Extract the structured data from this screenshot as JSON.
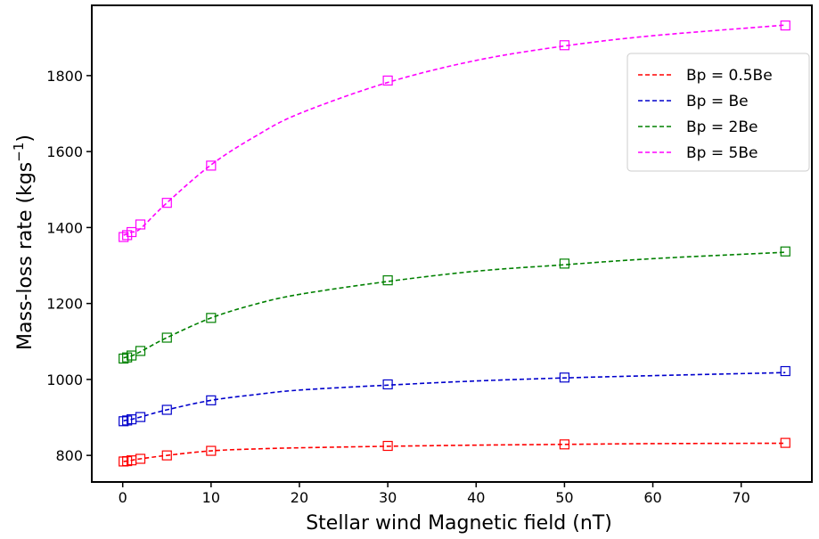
{
  "chart_data": {
    "type": "scatter",
    "xlabel": "Stellar wind Magnetic field (nT)",
    "ylabel": "Mass-loss rate (kgs",
    "ylabel_sup": "−1",
    "ylabel_close": ")",
    "xlim": [
      -3.5,
      78
    ],
    "ylim": [
      730,
      1985
    ],
    "xticks": [
      0,
      10,
      20,
      30,
      40,
      50,
      60,
      70
    ],
    "yticks": [
      800,
      1000,
      1200,
      1400,
      1600,
      1800
    ],
    "grid": false,
    "legend_position": "upper right",
    "series": [
      {
        "name": "Bp = 0.5Be",
        "color": "#ff0000",
        "x": [
          0.1,
          0.5,
          1,
          2,
          5,
          10,
          30,
          50,
          75
        ],
        "y": [
          784,
          785,
          787,
          791,
          800,
          812,
          825,
          829,
          833
        ],
        "fit": [
          [
            0.1,
            784
          ],
          [
            0.5,
            785
          ],
          [
            1,
            787
          ],
          [
            2,
            791
          ],
          [
            5,
            800
          ],
          [
            10,
            812
          ],
          [
            15,
            817
          ],
          [
            20,
            820
          ],
          [
            30,
            824
          ],
          [
            40,
            827
          ],
          [
            50,
            829
          ],
          [
            60,
            831
          ],
          [
            75,
            832
          ]
        ]
      },
      {
        "name": "Bp = Be",
        "color": "#0000cc",
        "x": [
          0.1,
          0.5,
          1,
          2,
          5,
          10,
          30,
          50,
          75
        ],
        "y": [
          890,
          892,
          895,
          901,
          920,
          945,
          987,
          1005,
          1022
        ],
        "fit": [
          [
            0.1,
            891
          ],
          [
            0.5,
            893
          ],
          [
            1,
            895
          ],
          [
            2,
            901
          ],
          [
            5,
            920
          ],
          [
            10,
            945
          ],
          [
            15,
            960
          ],
          [
            20,
            972
          ],
          [
            30,
            985
          ],
          [
            40,
            996
          ],
          [
            50,
            1004
          ],
          [
            60,
            1010
          ],
          [
            75,
            1018
          ]
        ]
      },
      {
        "name": "Bp = 2Be",
        "color": "#008000",
        "x": [
          0.1,
          0.5,
          1,
          2,
          5,
          10,
          30,
          50,
          75
        ],
        "y": [
          1055,
          1058,
          1063,
          1075,
          1110,
          1162,
          1261,
          1305,
          1337
        ],
        "fit": [
          [
            0.1,
            1057
          ],
          [
            0.5,
            1059
          ],
          [
            1,
            1062
          ],
          [
            2,
            1073
          ],
          [
            5,
            1110
          ],
          [
            10,
            1162
          ],
          [
            15,
            1198
          ],
          [
            20,
            1224
          ],
          [
            30,
            1258
          ],
          [
            40,
            1285
          ],
          [
            50,
            1302
          ],
          [
            60,
            1318
          ],
          [
            75,
            1335
          ]
        ]
      },
      {
        "name": "Bp = 5Be",
        "color": "#ff00ff",
        "x": [
          0.1,
          0.5,
          1,
          2,
          5,
          10,
          30,
          50,
          75
        ],
        "y": [
          1375,
          1380,
          1388,
          1408,
          1465,
          1563,
          1787,
          1880,
          1932
        ],
        "fit": [
          [
            0.1,
            1380
          ],
          [
            0.5,
            1383
          ],
          [
            1,
            1388
          ],
          [
            2,
            1397
          ],
          [
            5,
            1465
          ],
          [
            10,
            1565
          ],
          [
            15,
            1640
          ],
          [
            20,
            1700
          ],
          [
            30,
            1782
          ],
          [
            40,
            1840
          ],
          [
            50,
            1878
          ],
          [
            60,
            1905
          ],
          [
            75,
            1933
          ]
        ]
      }
    ]
  }
}
